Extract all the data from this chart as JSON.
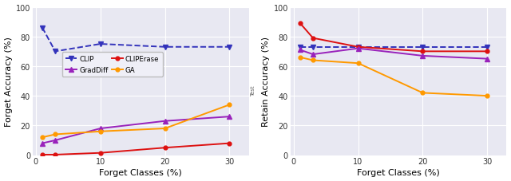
{
  "x": [
    1,
    3,
    10,
    20,
    30
  ],
  "forget_clip": [
    86,
    70,
    75,
    73,
    73
  ],
  "forget_cliperase": [
    0.3,
    0.3,
    1.5,
    5,
    8
  ],
  "forget_graddiff": [
    8,
    10,
    18,
    23,
    26
  ],
  "forget_ga": [
    12,
    14,
    16,
    18,
    34
  ],
  "retain_clip": [
    73,
    73,
    73,
    73,
    73
  ],
  "retain_cliperase": [
    89,
    79,
    73,
    70,
    70
  ],
  "retain_graddiff": [
    71,
    68,
    72,
    67,
    65
  ],
  "retain_ga": [
    66,
    64,
    62,
    42,
    40
  ],
  "color_clip": "#3333bb",
  "color_cliperase": "#dd1111",
  "color_graddiff": "#9922bb",
  "color_ga": "#ff9900",
  "bg_color": "#e8e8f2",
  "grid_color": "#ffffff",
  "xlabel": "Forget Classes (%)",
  "ylabel_left": "Forget Accuracy (%)",
  "ylabel_right": "Retain Accuracy (%)",
  "xlim": [
    -0.5,
    33
  ],
  "xticks": [
    0,
    10,
    20,
    30
  ],
  "ylim_left": [
    0,
    100
  ],
  "ylim_right": [
    0,
    100
  ],
  "yticks": [
    0,
    20,
    40,
    60,
    80,
    100
  ],
  "figsize": [
    6.4,
    2.28
  ],
  "dpi": 100
}
